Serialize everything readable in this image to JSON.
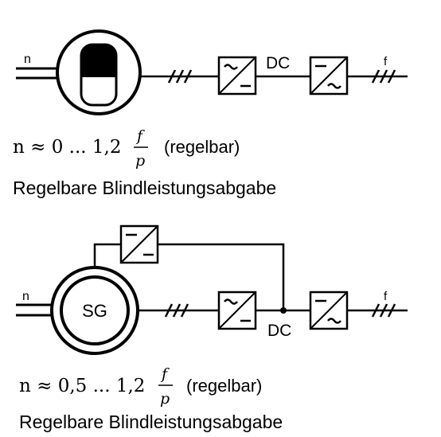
{
  "top_circuit": {
    "shaft_label": "n",
    "dc_label": "DC",
    "output_label": "f",
    "formula": {
      "lhs": "n ≈ 0 ... 1,2",
      "frac_num": "f",
      "frac_den": "p",
      "note": "(regelbar)"
    },
    "caption": "Regelbare Blindleistungsabgabe"
  },
  "bottom_circuit": {
    "shaft_label": "n",
    "machine_label": "SG",
    "dc_label": "DC",
    "output_label": "f",
    "formula": {
      "lhs": "n ≈ 0,5 ... 1,2",
      "frac_num": "f",
      "frac_den": "p",
      "note": "(regelbar)"
    },
    "caption": "Regelbare Blindleistungsabgabe"
  },
  "colors": {
    "line": "#000000",
    "background": "#ffffff"
  }
}
